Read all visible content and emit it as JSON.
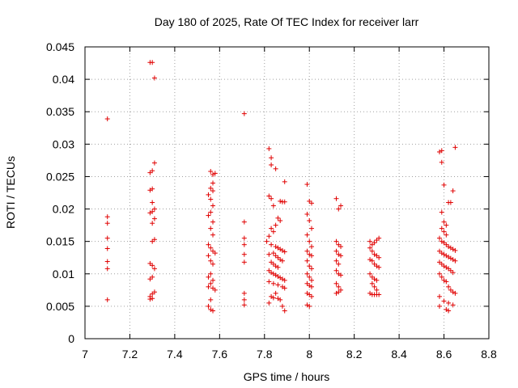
{
  "chart_data": {
    "type": "scatter",
    "title": "Day 180 of 2025, Rate Of TEC Index for receiver larr",
    "xlabel": "GPS time / hours",
    "ylabel": "ROTI / TECUs",
    "xlim": [
      7,
      8.8
    ],
    "ylim": [
      0,
      0.045
    ],
    "xticks": [
      "7",
      "7.2",
      "7.4",
      "7.6",
      "7.8",
      "8",
      "8.2",
      "8.4",
      "8.6",
      "8.8"
    ],
    "yticks": [
      "0",
      "0.005",
      "0.01",
      "0.015",
      "0.02",
      "0.025",
      "0.03",
      "0.035",
      "0.04",
      "0.045"
    ],
    "grid": true,
    "marker": "+",
    "color": "#e00000",
    "series": [
      {
        "name": "ROTI",
        "points": [
          [
            7.1,
            0.0339
          ],
          [
            7.1,
            0.0188
          ],
          [
            7.1,
            0.0178
          ],
          [
            7.1,
            0.0155
          ],
          [
            7.1,
            0.0139
          ],
          [
            7.1,
            0.0119
          ],
          [
            7.1,
            0.0108
          ],
          [
            7.1,
            0.006
          ],
          [
            7.29,
            0.0426
          ],
          [
            7.3,
            0.0426
          ],
          [
            7.31,
            0.0402
          ],
          [
            7.31,
            0.0271
          ],
          [
            7.3,
            0.0259
          ],
          [
            7.29,
            0.0256
          ],
          [
            7.3,
            0.0231
          ],
          [
            7.29,
            0.0229
          ],
          [
            7.3,
            0.021
          ],
          [
            7.31,
            0.02
          ],
          [
            7.3,
            0.0196
          ],
          [
            7.29,
            0.0194
          ],
          [
            7.31,
            0.0185
          ],
          [
            7.3,
            0.0178
          ],
          [
            7.31,
            0.0153
          ],
          [
            7.3,
            0.015
          ],
          [
            7.29,
            0.0116
          ],
          [
            7.3,
            0.0113
          ],
          [
            7.31,
            0.0108
          ],
          [
            7.3,
            0.0095
          ],
          [
            7.29,
            0.0092
          ],
          [
            7.31,
            0.0072
          ],
          [
            7.3,
            0.0069
          ],
          [
            7.29,
            0.0065
          ],
          [
            7.3,
            0.0062
          ],
          [
            7.29,
            0.0061
          ],
          [
            7.56,
            0.0258
          ],
          [
            7.57,
            0.0253
          ],
          [
            7.58,
            0.0255
          ],
          [
            7.57,
            0.024
          ],
          [
            7.56,
            0.0232
          ],
          [
            7.57,
            0.0228
          ],
          [
            7.55,
            0.0222
          ],
          [
            7.56,
            0.0215
          ],
          [
            7.57,
            0.0205
          ],
          [
            7.56,
            0.0195
          ],
          [
            7.55,
            0.019
          ],
          [
            7.57,
            0.018
          ],
          [
            7.56,
            0.017
          ],
          [
            7.57,
            0.016
          ],
          [
            7.55,
            0.0145
          ],
          [
            7.56,
            0.014
          ],
          [
            7.57,
            0.0135
          ],
          [
            7.58,
            0.0132
          ],
          [
            7.55,
            0.0128
          ],
          [
            7.56,
            0.012
          ],
          [
            7.57,
            0.0115
          ],
          [
            7.56,
            0.01
          ],
          [
            7.55,
            0.0095
          ],
          [
            7.57,
            0.009
          ],
          [
            7.56,
            0.0085
          ],
          [
            7.55,
            0.008
          ],
          [
            7.57,
            0.0078
          ],
          [
            7.58,
            0.0075
          ],
          [
            7.56,
            0.006
          ],
          [
            7.55,
            0.005
          ],
          [
            7.56,
            0.0045
          ],
          [
            7.57,
            0.0043
          ],
          [
            7.71,
            0.0347
          ],
          [
            7.71,
            0.018
          ],
          [
            7.71,
            0.0155
          ],
          [
            7.71,
            0.0145
          ],
          [
            7.71,
            0.013
          ],
          [
            7.71,
            0.0118
          ],
          [
            7.71,
            0.007
          ],
          [
            7.71,
            0.006
          ],
          [
            7.71,
            0.0052
          ],
          [
            7.82,
            0.0293
          ],
          [
            7.83,
            0.0279
          ],
          [
            7.83,
            0.0268
          ],
          [
            7.85,
            0.0262
          ],
          [
            7.82,
            0.022
          ],
          [
            7.83,
            0.0216
          ],
          [
            7.89,
            0.0242
          ],
          [
            7.84,
            0.0205
          ],
          [
            7.87,
            0.0212
          ],
          [
            7.88,
            0.0211
          ],
          [
            7.89,
            0.0211
          ],
          [
            7.86,
            0.0186
          ],
          [
            7.87,
            0.0182
          ],
          [
            7.85,
            0.0175
          ],
          [
            7.83,
            0.017
          ],
          [
            7.84,
            0.0165
          ],
          [
            7.82,
            0.0158
          ],
          [
            7.81,
            0.015
          ],
          [
            7.83,
            0.0145
          ],
          [
            7.85,
            0.0142
          ],
          [
            7.86,
            0.014
          ],
          [
            7.87,
            0.0138
          ],
          [
            7.88,
            0.0136
          ],
          [
            7.89,
            0.0134
          ],
          [
            7.84,
            0.0132
          ],
          [
            7.82,
            0.013
          ],
          [
            7.85,
            0.0128
          ],
          [
            7.86,
            0.0125
          ],
          [
            7.87,
            0.0122
          ],
          [
            7.88,
            0.012
          ],
          [
            7.83,
            0.0118
          ],
          [
            7.84,
            0.0115
          ],
          [
            7.85,
            0.0112
          ],
          [
            7.86,
            0.011
          ],
          [
            7.82,
            0.0105
          ],
          [
            7.83,
            0.0102
          ],
          [
            7.84,
            0.01
          ],
          [
            7.85,
            0.0098
          ],
          [
            7.86,
            0.0096
          ],
          [
            7.87,
            0.0094
          ],
          [
            7.88,
            0.0092
          ],
          [
            7.89,
            0.009
          ],
          [
            7.82,
            0.0088
          ],
          [
            7.84,
            0.0085
          ],
          [
            7.86,
            0.0083
          ],
          [
            7.88,
            0.008
          ],
          [
            7.89,
            0.0078
          ],
          [
            7.85,
            0.007
          ],
          [
            7.83,
            0.0065
          ],
          [
            7.84,
            0.0063
          ],
          [
            7.86,
            0.0062
          ],
          [
            7.87,
            0.006
          ],
          [
            7.82,
            0.0055
          ],
          [
            7.88,
            0.005
          ],
          [
            7.89,
            0.0043
          ],
          [
            7.99,
            0.0238
          ],
          [
            8.0,
            0.0212
          ],
          [
            8.01,
            0.0209
          ],
          [
            7.99,
            0.0192
          ],
          [
            8.0,
            0.0182
          ],
          [
            8.01,
            0.017
          ],
          [
            7.99,
            0.016
          ],
          [
            8.0,
            0.015
          ],
          [
            8.01,
            0.0142
          ],
          [
            7.99,
            0.0135
          ],
          [
            8.0,
            0.013
          ],
          [
            8.01,
            0.0128
          ],
          [
            7.99,
            0.012
          ],
          [
            8.0,
            0.0112
          ],
          [
            8.01,
            0.0108
          ],
          [
            7.99,
            0.01
          ],
          [
            8.0,
            0.0095
          ],
          [
            8.01,
            0.009
          ],
          [
            7.99,
            0.0085
          ],
          [
            8.0,
            0.0082
          ],
          [
            8.01,
            0.008
          ],
          [
            7.99,
            0.007
          ],
          [
            8.0,
            0.0068
          ],
          [
            8.01,
            0.0065
          ],
          [
            7.99,
            0.0052
          ],
          [
            8.0,
            0.005
          ],
          [
            8.12,
            0.0216
          ],
          [
            8.14,
            0.0205
          ],
          [
            8.13,
            0.02
          ],
          [
            8.12,
            0.015
          ],
          [
            8.13,
            0.0145
          ],
          [
            8.14,
            0.0142
          ],
          [
            8.12,
            0.0135
          ],
          [
            8.13,
            0.013
          ],
          [
            8.14,
            0.0128
          ],
          [
            8.12,
            0.012
          ],
          [
            8.13,
            0.0115
          ],
          [
            8.12,
            0.0105
          ],
          [
            8.13,
            0.01
          ],
          [
            8.14,
            0.0098
          ],
          [
            8.12,
            0.0085
          ],
          [
            8.13,
            0.008
          ],
          [
            8.14,
            0.0075
          ],
          [
            8.13,
            0.0072
          ],
          [
            8.12,
            0.007
          ],
          [
            8.27,
            0.015
          ],
          [
            8.28,
            0.0145
          ],
          [
            8.29,
            0.0148
          ],
          [
            8.3,
            0.0152
          ],
          [
            8.31,
            0.0155
          ],
          [
            8.27,
            0.014
          ],
          [
            8.28,
            0.0135
          ],
          [
            8.29,
            0.013
          ],
          [
            8.3,
            0.0128
          ],
          [
            8.31,
            0.0125
          ],
          [
            8.27,
            0.0122
          ],
          [
            8.28,
            0.012
          ],
          [
            8.29,
            0.0115
          ],
          [
            8.3,
            0.0112
          ],
          [
            8.31,
            0.011
          ],
          [
            8.27,
            0.01
          ],
          [
            8.28,
            0.0095
          ],
          [
            8.29,
            0.0092
          ],
          [
            8.3,
            0.009
          ],
          [
            8.28,
            0.0085
          ],
          [
            8.29,
            0.008
          ],
          [
            8.3,
            0.0075
          ],
          [
            8.27,
            0.007
          ],
          [
            8.28,
            0.0068
          ],
          [
            8.29,
            0.0068
          ],
          [
            8.3,
            0.0068
          ],
          [
            8.31,
            0.0068
          ],
          [
            8.58,
            0.0288
          ],
          [
            8.59,
            0.029
          ],
          [
            8.65,
            0.0295
          ],
          [
            8.59,
            0.0272
          ],
          [
            8.6,
            0.0237
          ],
          [
            8.64,
            0.0228
          ],
          [
            8.62,
            0.021
          ],
          [
            8.63,
            0.021
          ],
          [
            8.59,
            0.0195
          ],
          [
            8.6,
            0.018
          ],
          [
            8.61,
            0.0175
          ],
          [
            8.59,
            0.017
          ],
          [
            8.6,
            0.0165
          ],
          [
            8.61,
            0.016
          ],
          [
            8.58,
            0.0155
          ],
          [
            8.59,
            0.015
          ],
          [
            8.6,
            0.0148
          ],
          [
            8.61,
            0.0145
          ],
          [
            8.62,
            0.0142
          ],
          [
            8.63,
            0.014
          ],
          [
            8.64,
            0.0138
          ],
          [
            8.65,
            0.0136
          ],
          [
            8.58,
            0.0135
          ],
          [
            8.59,
            0.0132
          ],
          [
            8.6,
            0.013
          ],
          [
            8.61,
            0.0128
          ],
          [
            8.62,
            0.0126
          ],
          [
            8.63,
            0.0124
          ],
          [
            8.64,
            0.0122
          ],
          [
            8.65,
            0.012
          ],
          [
            8.58,
            0.0118
          ],
          [
            8.59,
            0.0115
          ],
          [
            8.6,
            0.0112
          ],
          [
            8.61,
            0.011
          ],
          [
            8.62,
            0.0108
          ],
          [
            8.63,
            0.0105
          ],
          [
            8.64,
            0.0102
          ],
          [
            8.58,
            0.01
          ],
          [
            8.59,
            0.0095
          ],
          [
            8.6,
            0.009
          ],
          [
            8.61,
            0.0088
          ],
          [
            8.62,
            0.008
          ],
          [
            8.63,
            0.0075
          ],
          [
            8.64,
            0.0072
          ],
          [
            8.65,
            0.007
          ],
          [
            8.58,
            0.0065
          ],
          [
            8.6,
            0.0058
          ],
          [
            8.62,
            0.0055
          ],
          [
            8.64,
            0.0052
          ],
          [
            8.58,
            0.005
          ],
          [
            8.61,
            0.0045
          ],
          [
            8.62,
            0.0043
          ]
        ]
      }
    ]
  }
}
